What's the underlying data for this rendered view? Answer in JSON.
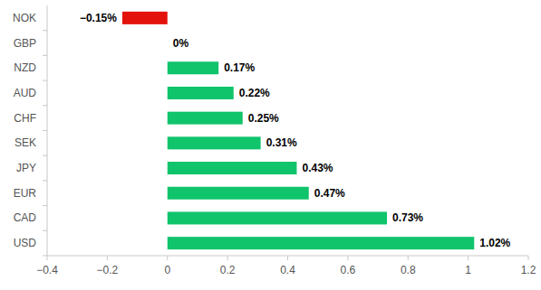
{
  "chart_data": {
    "type": "bar",
    "orientation": "horizontal",
    "categories": [
      "NOK",
      "GBP",
      "NZD",
      "AUD",
      "CHF",
      "SEK",
      "JPY",
      "EUR",
      "CAD",
      "USD"
    ],
    "values": [
      -0.15,
      0,
      0.17,
      0.22,
      0.25,
      0.31,
      0.43,
      0.47,
      0.73,
      1.02
    ],
    "value_labels": [
      "−0.15%",
      "0%",
      "0.17%",
      "0.22%",
      "0.25%",
      "0.31%",
      "0.43%",
      "0.47%",
      "0.73%",
      "1.02%"
    ],
    "colors": [
      "#e3120b",
      "#10c46c",
      "#10c46c",
      "#10c46c",
      "#10c46c",
      "#10c46c",
      "#10c46c",
      "#10c46c",
      "#10c46c",
      "#10c46c"
    ],
    "xlim": [
      -0.4,
      1.2
    ],
    "xticks": [
      {
        "value": -0.4,
        "label": "−0.4"
      },
      {
        "value": -0.2,
        "label": "−0.2"
      },
      0,
      0.2,
      0.4,
      0.6,
      0.8,
      1,
      1.2
    ],
    "data_labels": true,
    "grid": false
  }
}
